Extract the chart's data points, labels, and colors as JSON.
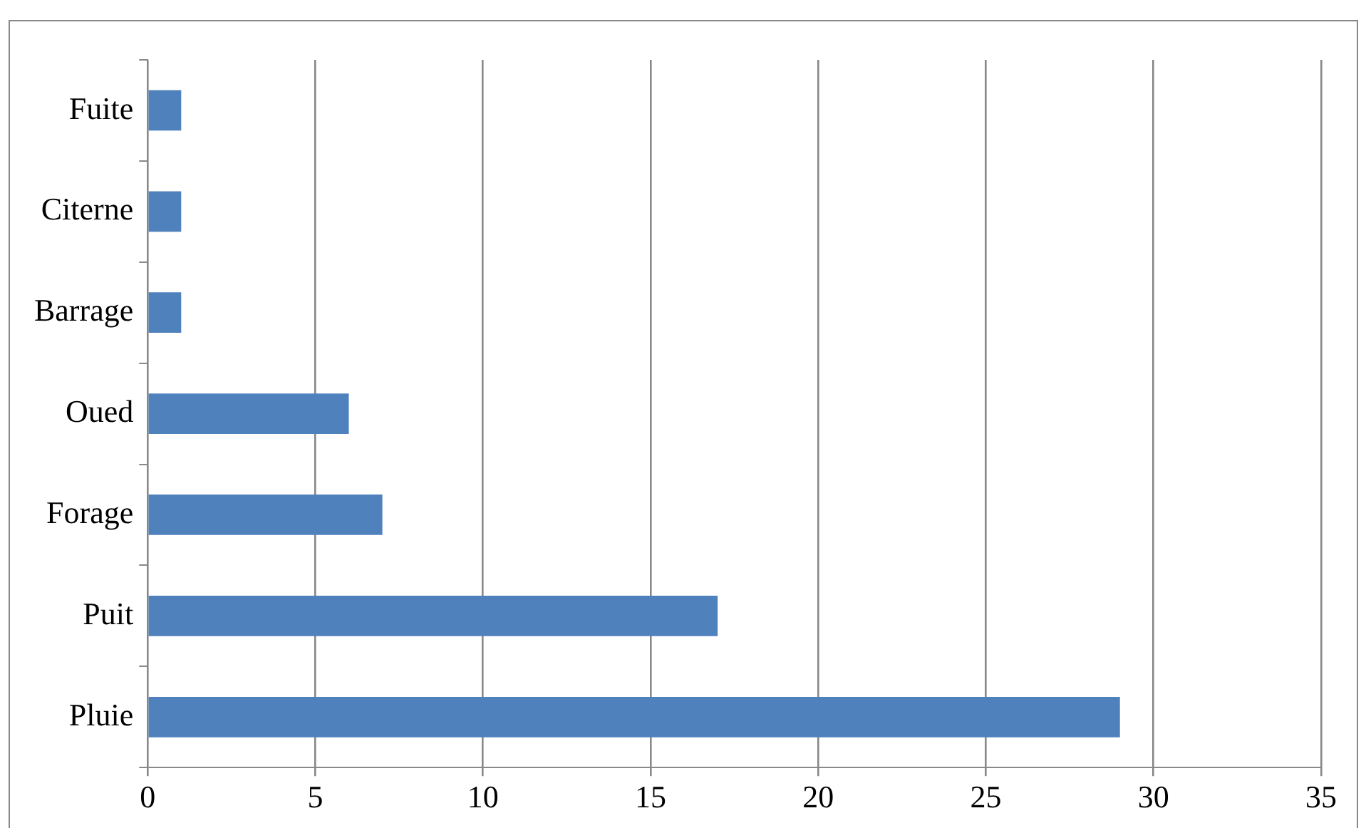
{
  "chart_data": {
    "type": "bar",
    "orientation": "horizontal",
    "categories": [
      "Fuite",
      "Citerne",
      "Barrage",
      "Oued",
      "Forage",
      "Puit",
      "Pluie"
    ],
    "values": [
      1,
      1,
      1,
      6,
      7,
      17,
      29
    ],
    "color": "#4f81bd",
    "xlim": [
      0,
      35
    ],
    "xticks": [
      0,
      5,
      10,
      15,
      20,
      25,
      30,
      35
    ],
    "grid": "x",
    "legend": false
  }
}
